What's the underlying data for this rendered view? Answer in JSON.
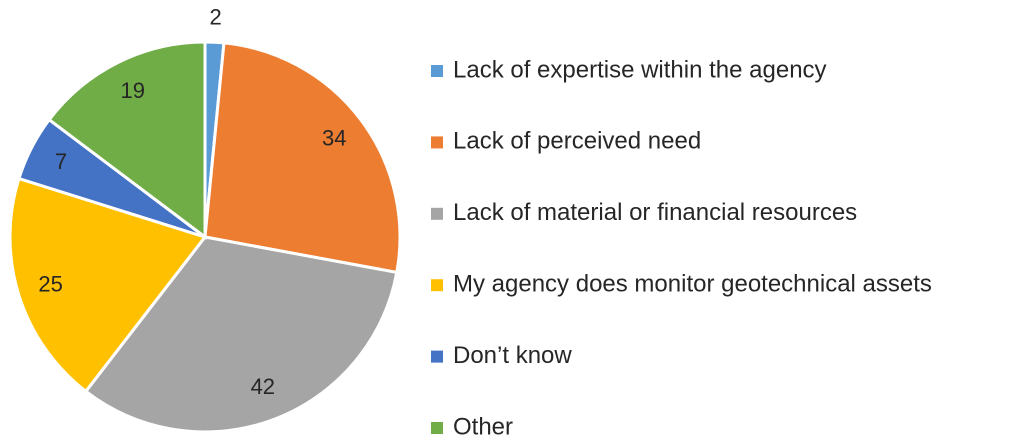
{
  "chart_data": {
    "type": "pie",
    "categories": [
      "Lack of expertise within the agency",
      "Lack of perceived need",
      "Lack of material or financial resources",
      "My agency does monitor geotechnical assets",
      "Don’t know",
      "Other"
    ],
    "values": [
      2,
      34,
      42,
      25,
      7,
      19
    ],
    "colors": [
      "#5B9BD5",
      "#ED7D31",
      "#A5A5A5",
      "#FFC000",
      "#4472C4",
      "#70AD47"
    ],
    "legend": "right"
  }
}
